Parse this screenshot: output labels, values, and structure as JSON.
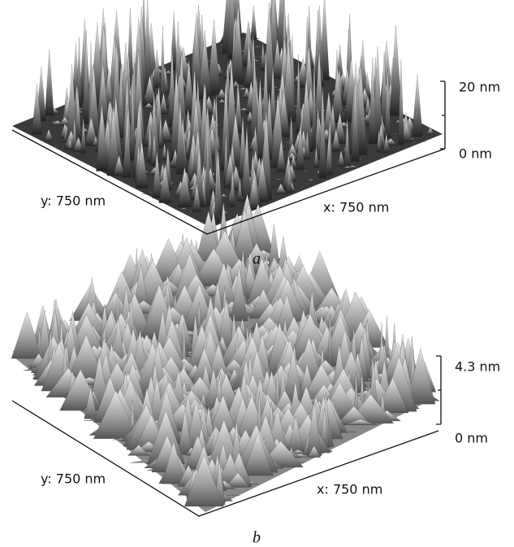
{
  "panels": [
    {
      "z_top_label": "20 nm",
      "z_bottom_label": "0 nm",
      "y_axis_label": "y: 750 nm",
      "x_axis_label": "x: 750 nm",
      "caption": "a"
    },
    {
      "z_top_label": "4.3 nm",
      "z_bottom_label": "0 nm",
      "y_axis_label": "y: 750 nm",
      "x_axis_label": "x: 750 nm",
      "caption": "b"
    }
  ]
}
